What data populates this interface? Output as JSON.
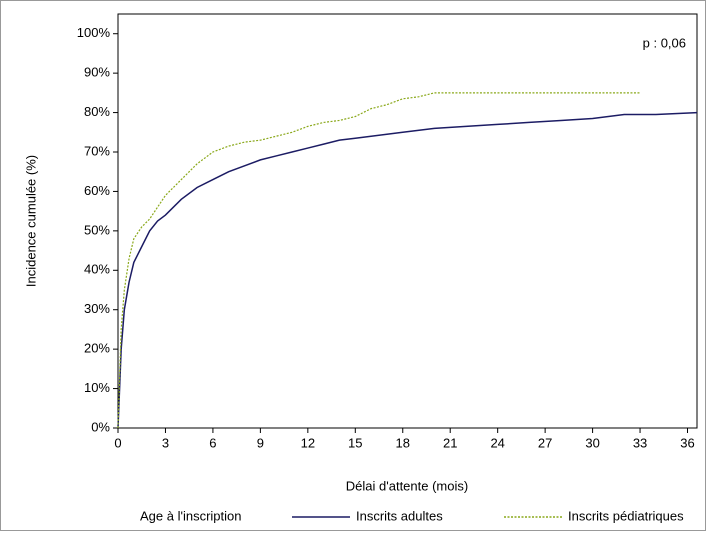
{
  "chart_data": {
    "type": "line",
    "xlabel": "Délai d'attente (mois)",
    "ylabel": "Incidence cumulée (%)",
    "annotation": "p : 0,06",
    "legend_title": "Age à l'inscription",
    "legend": "bottom",
    "xlim": [
      0,
      36.6
    ],
    "xticks": [
      0,
      3,
      6,
      9,
      12,
      15,
      18,
      21,
      24,
      27,
      30,
      33,
      36
    ],
    "ylim": [
      0,
      105
    ],
    "yticks": [
      {
        "value": 0,
        "label": "0%"
      },
      {
        "value": 10,
        "label": "10%"
      },
      {
        "value": 20,
        "label": "20%"
      },
      {
        "value": 30,
        "label": "30%"
      },
      {
        "value": 40,
        "label": "40%"
      },
      {
        "value": 50,
        "label": "50%"
      },
      {
        "value": 60,
        "label": "60%"
      },
      {
        "value": 70,
        "label": "70%"
      },
      {
        "value": 80,
        "label": "80%"
      },
      {
        "value": 90,
        "label": "90%"
      },
      {
        "value": 100,
        "label": "100%"
      }
    ],
    "series": [
      {
        "name": "Inscrits adultes",
        "color": "#1c1c64",
        "dash": false,
        "x": [
          0,
          0.2,
          0.4,
          0.7,
          1,
          1.5,
          2,
          2.5,
          3,
          4,
          5,
          6,
          7,
          8,
          9,
          10,
          11,
          12,
          13,
          14,
          15,
          16,
          17,
          18,
          20,
          22,
          24,
          26,
          28,
          30,
          32,
          34,
          36.6
        ],
        "values": [
          0,
          20,
          30,
          37,
          42,
          46,
          50,
          52.5,
          54,
          58,
          61,
          63,
          65,
          66.5,
          68,
          69,
          70,
          71,
          72,
          73,
          73.5,
          74,
          74.5,
          75,
          76,
          76.5,
          77,
          77.5,
          78,
          78.5,
          79.5,
          79.5,
          80
        ]
      },
      {
        "name": "Inscrits pédiatriques",
        "color": "#8aa81a",
        "dash": true,
        "x": [
          0,
          0.2,
          0.4,
          0.7,
          1,
          1.5,
          2,
          2.5,
          3,
          4,
          5,
          6,
          7,
          8,
          9,
          10,
          11,
          12,
          13,
          14,
          15,
          16,
          17,
          18,
          19,
          20,
          33
        ],
        "values": [
          0,
          25,
          35,
          43,
          48,
          51,
          53,
          56,
          59,
          63,
          67,
          70,
          71.5,
          72.5,
          73,
          74,
          75,
          76.5,
          77.5,
          78,
          79,
          81,
          82,
          83.5,
          84,
          85,
          85
        ]
      }
    ]
  }
}
